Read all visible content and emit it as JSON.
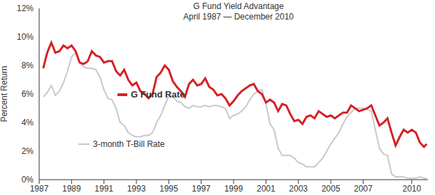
{
  "chart_data": {
    "type": "line",
    "title": "G Fund Yield Advantage",
    "subtitle": "April 1987 — December 2010",
    "y_label": "Percent Return",
    "x": [
      1987.25,
      1987.5,
      1987.75,
      1988,
      1988.25,
      1988.5,
      1988.75,
      1989,
      1989.25,
      1989.5,
      1989.75,
      1990,
      1990.25,
      1990.5,
      1990.75,
      1991,
      1991.25,
      1991.5,
      1991.75,
      1992,
      1992.25,
      1992.5,
      1992.75,
      1993,
      1993.25,
      1993.5,
      1993.75,
      1994,
      1994.25,
      1994.5,
      1994.75,
      1995,
      1995.25,
      1995.5,
      1995.75,
      1996,
      1996.25,
      1996.5,
      1996.75,
      1997,
      1997.25,
      1997.5,
      1997.75,
      1998,
      1998.25,
      1998.5,
      1998.75,
      1999,
      1999.25,
      1999.5,
      1999.75,
      2000,
      2000.25,
      2000.5,
      2000.75,
      2001,
      2001.25,
      2001.5,
      2001.75,
      2002,
      2002.25,
      2002.5,
      2002.75,
      2003,
      2003.25,
      2003.5,
      2003.75,
      2004,
      2004.25,
      2004.5,
      2004.75,
      2005,
      2005.25,
      2005.5,
      2005.75,
      2006,
      2006.25,
      2006.5,
      2006.75,
      2007,
      2007.25,
      2007.5,
      2007.75,
      2008,
      2008.25,
      2008.5,
      2008.75,
      2009,
      2009.25,
      2009.5,
      2009.75,
      2010,
      2010.25,
      2010.5,
      2010.75,
      2010.92
    ],
    "series": [
      {
        "name": "3-month T-Bill Rate",
        "color": "#c8c8c8",
        "values": [
          5.8,
          6.1,
          6.6,
          5.9,
          6.2,
          6.8,
          7.6,
          8.6,
          8.9,
          8.2,
          7.9,
          7.8,
          7.8,
          7.7,
          7.2,
          6.3,
          5.7,
          5.6,
          5.0,
          4.0,
          3.8,
          3.3,
          3.1,
          3.0,
          3.0,
          3.1,
          3.1,
          3.3,
          4.0,
          4.5,
          5.2,
          5.9,
          5.8,
          5.5,
          5.4,
          5.1,
          5.0,
          5.2,
          5.1,
          5.1,
          5.2,
          5.1,
          5.2,
          5.2,
          5.1,
          5.0,
          4.3,
          4.5,
          4.6,
          4.8,
          5.1,
          5.6,
          6.0,
          6.2,
          6.3,
          5.3,
          3.9,
          3.5,
          2.2,
          1.7,
          1.7,
          1.7,
          1.5,
          1.2,
          1.1,
          0.9,
          0.9,
          0.9,
          1.2,
          1.5,
          2.0,
          2.5,
          2.9,
          3.3,
          3.9,
          4.4,
          4.7,
          5.0,
          5.0,
          5.0,
          4.9,
          4.8,
          3.5,
          2.2,
          1.8,
          1.7,
          0.4,
          0.2,
          0.2,
          0.2,
          0.1,
          0.1,
          0.1,
          0.2,
          0.1,
          0.1
        ]
      },
      {
        "name": "G Fund Rate",
        "color": "#d42127",
        "values": [
          7.8,
          8.9,
          9.6,
          8.9,
          9.0,
          9.4,
          9.2,
          9.4,
          9.0,
          8.2,
          8.1,
          8.3,
          9.0,
          8.7,
          8.6,
          8.2,
          8.3,
          8.3,
          7.6,
          7.3,
          7.7,
          7.0,
          6.6,
          6.8,
          6.2,
          6.0,
          5.7,
          6.0,
          7.2,
          7.5,
          8.0,
          7.7,
          6.9,
          6.5,
          6.2,
          5.8,
          6.7,
          7.0,
          6.6,
          6.7,
          7.1,
          6.5,
          6.3,
          5.9,
          6.0,
          5.7,
          5.2,
          5.5,
          5.9,
          6.2,
          6.4,
          6.6,
          6.7,
          6.2,
          6.0,
          5.4,
          5.6,
          5.4,
          4.8,
          5.3,
          5.2,
          4.6,
          4.1,
          4.2,
          3.9,
          4.4,
          4.5,
          4.3,
          4.8,
          4.6,
          4.4,
          4.5,
          4.3,
          4.5,
          4.7,
          4.7,
          5.2,
          5.0,
          4.8,
          4.9,
          5.0,
          5.2,
          4.5,
          3.8,
          4.0,
          4.3,
          3.3,
          2.4,
          3.0,
          3.5,
          3.3,
          3.5,
          3.3,
          2.6,
          2.3,
          2.5
        ]
      }
    ],
    "xlim": [
      1987,
      2011
    ],
    "xticks": [
      1987,
      1989,
      1991,
      1993,
      1995,
      1997,
      1999,
      2001,
      2003,
      2005,
      2007,
      2010
    ],
    "ylim": [
      0,
      12
    ],
    "yticks": [
      {
        "value": 0,
        "label": "0%"
      },
      {
        "value": 2,
        "label": "2%"
      },
      {
        "value": 4,
        "label": "4%"
      },
      {
        "value": 6,
        "label": "6%"
      },
      {
        "value": 8,
        "label": "8%"
      },
      {
        "value": 10,
        "label": "10%"
      },
      {
        "value": 12,
        "label": "12%"
      }
    ],
    "grid": false
  }
}
